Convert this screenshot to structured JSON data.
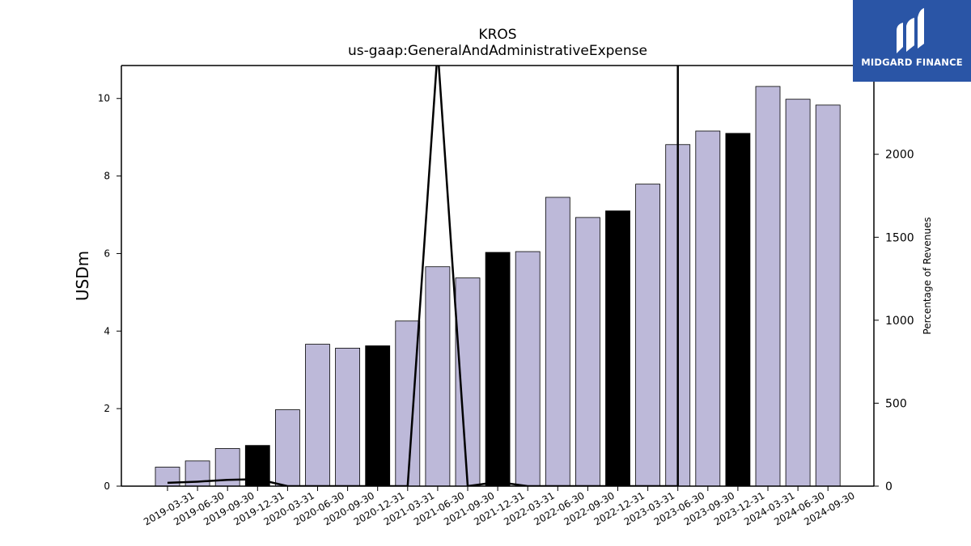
{
  "brand": {
    "name": "MIDGARD FINANCE",
    "bg_color": "#2a55a6"
  },
  "chart_data": {
    "type": "bar",
    "title": "KROS",
    "subtitle": "us-gaap:GeneralAndAdministrativeExpense",
    "ylabel": "USDm",
    "ylabel_right": "Percentage of Revenues",
    "categories": [
      "2019-03-31",
      "2019-06-30",
      "2019-09-30",
      "2019-12-31",
      "2020-03-31",
      "2020-06-30",
      "2020-09-30",
      "2020-12-31",
      "2021-03-31",
      "2021-06-30",
      "2021-09-30",
      "2021-12-31",
      "2022-03-31",
      "2022-06-30",
      "2022-09-30",
      "2022-12-31",
      "2023-03-31",
      "2023-06-30",
      "2023-09-30",
      "2023-12-31",
      "2024-03-31",
      "2024-06-30",
      "2024-09-30"
    ],
    "series": [
      {
        "values": [
          0.49,
          0.65,
          0.97,
          1.05,
          1.97,
          3.66,
          3.56,
          3.62,
          4.26,
          5.66,
          5.37,
          6.03,
          6.05,
          7.45,
          6.93,
          7.1,
          7.79,
          8.81,
          9.16,
          9.1,
          10.31,
          9.98,
          9.83
        ],
        "highlight": [
          false,
          false,
          false,
          true,
          false,
          false,
          false,
          true,
          false,
          false,
          false,
          true,
          false,
          false,
          false,
          true,
          false,
          false,
          false,
          true,
          false,
          false,
          false
        ],
        "color": "#bdb9d9",
        "highlight_color": "#000000"
      },
      {
        "axis": "right",
        "type": "line",
        "color": "#000000",
        "values": [
          20,
          27,
          38,
          42,
          0,
          0,
          0,
          0,
          0,
          3500,
          0,
          25,
          0,
          0,
          0,
          0,
          0,
          0,
          null,
          null,
          null,
          null,
          null
        ],
        "spike_at": "2023-06-30"
      }
    ],
    "ylim": [
      0,
      10.85
    ],
    "ylim_right": [
      0,
      2535
    ],
    "yticks": [
      0,
      2,
      4,
      6,
      8,
      10
    ],
    "yticks_right": [
      0,
      500,
      1000,
      1500,
      2000
    ],
    "grid": false
  }
}
